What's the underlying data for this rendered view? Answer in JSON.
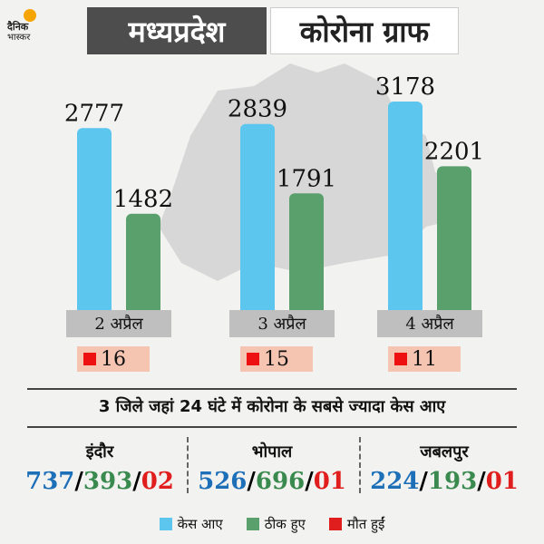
{
  "brand": {
    "line1": "दैनिक",
    "line2": "भास्कर"
  },
  "title": {
    "left": "मध्यप्रदेश",
    "right": "कोरोना ग्राफ"
  },
  "colors": {
    "cases": "#5cc6ef",
    "recovered": "#5aa06c",
    "deaths": "#e01e1e",
    "death_bg": "#f5c5b2",
    "label_bg": "#bfbfbf"
  },
  "chart_data": {
    "type": "bar",
    "categories": [
      "2 अप्रैल",
      "3 अप्रैल",
      "4 अप्रैल"
    ],
    "series": [
      {
        "name": "केस आए",
        "values": [
          2777,
          2839,
          3178
        ]
      },
      {
        "name": "ठीक हुए",
        "values": [
          1482,
          1791,
          2201
        ]
      }
    ],
    "deaths": [
      16,
      15,
      11
    ],
    "ylim": [
      0,
      3200
    ]
  },
  "subheading": "3 जिले जहां 24 घंटे में कोरोना के सबसे ज्यादा केस आए",
  "districts": [
    {
      "name": "इंदौर",
      "cases": "737",
      "recovered": "393",
      "deaths": "02"
    },
    {
      "name": "भोपाल",
      "cases": "526",
      "recovered": "696",
      "deaths": "01"
    },
    {
      "name": "जबलपुर",
      "cases": "224",
      "recovered": "193",
      "deaths": "01"
    }
  ],
  "legend": [
    "केस आए",
    "ठीक हुए",
    "मौत हुईं"
  ]
}
